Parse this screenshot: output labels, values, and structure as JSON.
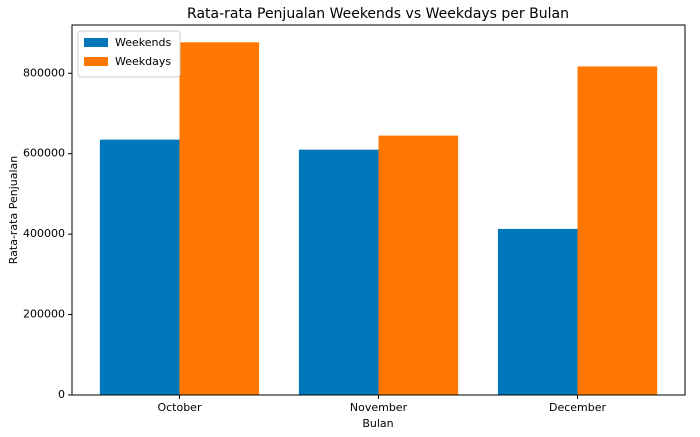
{
  "chart_data": {
    "type": "bar",
    "title": "Rata-rata Penjualan Weekends vs Weekdays per Bulan",
    "x_label": "Bulan",
    "y_label": "Rata-rata Penjualan",
    "categories": [
      "October",
      "November",
      "December"
    ],
    "series": [
      {
        "name": "Weekends",
        "color": "#0077bb",
        "values": [
          635000,
          610000,
          413000
        ]
      },
      {
        "name": "Weekdays",
        "color": "#ff7700",
        "values": [
          877000,
          645000,
          817000
        ]
      }
    ],
    "ylim": [
      0,
      920000
    ],
    "yticks": [
      0,
      200000,
      400000,
      600000,
      800000
    ],
    "legend": "upper left"
  }
}
